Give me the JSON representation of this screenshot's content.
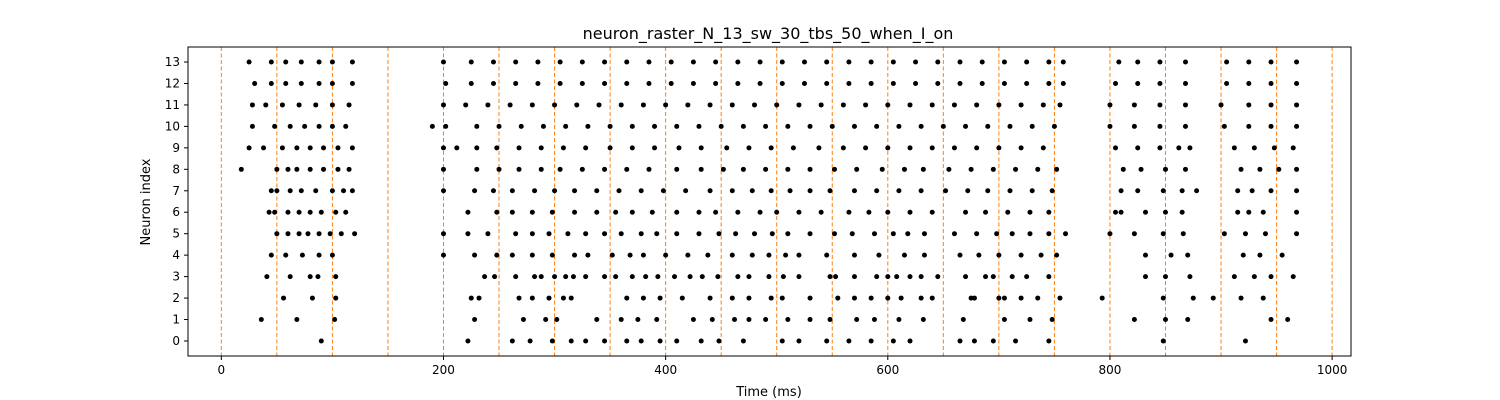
{
  "chart_data": {
    "type": "scatter",
    "title": "neuron_raster_N_13_sw_30_tbs_50_when_I_on",
    "xlabel": "Time (ms)",
    "ylabel": "Neuron index",
    "xlim": [
      -30,
      1017
    ],
    "ylim": [
      -0.7,
      13.7
    ],
    "x_ticks": [
      0,
      200,
      400,
      600,
      800,
      1000
    ],
    "y_ticks": [
      0,
      1,
      2,
      3,
      4,
      5,
      6,
      7,
      8,
      9,
      10,
      11,
      12,
      13
    ],
    "grid": false,
    "marker_color": "#000000",
    "vline_color": "#ff7f0e",
    "vlines_x": [
      0,
      50,
      100,
      150,
      200,
      250,
      300,
      350,
      400,
      450,
      500,
      550,
      600,
      650,
      700,
      750,
      800,
      850,
      900,
      950,
      1000
    ],
    "spikes": [
      {
        "neuron": 0,
        "times": [
          90,
          222,
          262,
          278,
          298,
          315,
          328,
          345,
          365,
          378,
          395,
          410,
          432,
          448,
          470,
          505,
          520,
          545,
          565,
          585,
          605,
          620,
          665,
          678,
          695,
          715,
          745,
          848,
          922
        ]
      },
      {
        "neuron": 1,
        "times": [
          36,
          68,
          102,
          228,
          272,
          292,
          302,
          338,
          360,
          375,
          392,
          425,
          442,
          462,
          475,
          490,
          510,
          530,
          548,
          572,
          588,
          610,
          632,
          668,
          705,
          728,
          748,
          822,
          850,
          870,
          945,
          960
        ]
      },
      {
        "neuron": 2,
        "times": [
          56,
          82,
          103,
          225,
          232,
          268,
          280,
          295,
          308,
          315,
          365,
          380,
          395,
          415,
          440,
          460,
          475,
          495,
          505,
          530,
          555,
          570,
          585,
          600,
          612,
          630,
          640,
          675,
          678,
          700,
          705,
          720,
          735,
          755,
          793,
          848,
          875,
          893,
          918,
          938
        ]
      },
      {
        "neuron": 3,
        "times": [
          41,
          62,
          80,
          87,
          103,
          237,
          246,
          265,
          282,
          288,
          300,
          310,
          317,
          328,
          345,
          355,
          370,
          382,
          393,
          408,
          422,
          433,
          447,
          465,
          475,
          493,
          506,
          520,
          548,
          553,
          570,
          590,
          600,
          608,
          620,
          630,
          645,
          670,
          688,
          695,
          712,
          725,
          745,
          832,
          850,
          872,
          912,
          930,
          945,
          965
        ]
      },
      {
        "neuron": 4,
        "times": [
          45,
          58,
          73,
          88,
          100,
          200,
          228,
          248,
          262,
          280,
          298,
          318,
          330,
          352,
          368,
          380,
          400,
          420,
          438,
          460,
          478,
          493,
          508,
          520,
          545,
          570,
          592,
          615,
          633,
          665,
          682,
          700,
          720,
          738,
          752,
          832,
          855,
          870,
          920,
          935,
          955
        ]
      },
      {
        "neuron": 5,
        "times": [
          50,
          60,
          70,
          78,
          88,
          98,
          108,
          120,
          200,
          222,
          240,
          265,
          280,
          295,
          312,
          328,
          345,
          360,
          378,
          392,
          410,
          430,
          448,
          463,
          480,
          496,
          510,
          530,
          552,
          568,
          588,
          605,
          618,
          633,
          660,
          680,
          698,
          712,
          728,
          745,
          760,
          800,
          822,
          848,
          866,
          903,
          922,
          940,
          968
        ]
      },
      {
        "neuron": 6,
        "times": [
          43,
          48,
          60,
          70,
          80,
          90,
          103,
          112,
          222,
          248,
          262,
          280,
          298,
          318,
          338,
          355,
          370,
          388,
          410,
          430,
          445,
          465,
          485,
          500,
          520,
          540,
          565,
          583,
          600,
          620,
          640,
          670,
          688,
          708,
          728,
          745,
          805,
          810,
          832,
          850,
          865,
          915,
          925,
          938,
          968
        ]
      },
      {
        "neuron": 7,
        "times": [
          45,
          50,
          62,
          72,
          85,
          100,
          110,
          118,
          200,
          228,
          245,
          262,
          282,
          300,
          318,
          338,
          358,
          378,
          398,
          418,
          440,
          460,
          478,
          495,
          512,
          530,
          548,
          570,
          590,
          610,
          630,
          652,
          672,
          690,
          710,
          730,
          748,
          810,
          825,
          848,
          865,
          878,
          915,
          928,
          945,
          968
        ]
      },
      {
        "neuron": 8,
        "times": [
          18,
          50,
          60,
          68,
          80,
          92,
          105,
          115,
          200,
          230,
          250,
          268,
          288,
          305,
          325,
          345,
          365,
          385,
          410,
          432,
          452,
          470,
          490,
          510,
          530,
          552,
          572,
          595,
          615,
          632,
          655,
          675,
          695,
          715,
          735,
          752,
          812,
          828,
          850,
          868,
          918,
          935,
          952,
          968
        ]
      },
      {
        "neuron": 9,
        "times": [
          25,
          38,
          55,
          68,
          80,
          92,
          105,
          118,
          200,
          212,
          230,
          248,
          268,
          288,
          308,
          328,
          350,
          370,
          390,
          412,
          432,
          455,
          475,
          495,
          515,
          538,
          560,
          580,
          600,
          620,
          640,
          660,
          680,
          700,
          720,
          740,
          805,
          825,
          845,
          862,
          872,
          912,
          930,
          948,
          965
        ]
      },
      {
        "neuron": 10,
        "times": [
          28,
          48,
          62,
          75,
          88,
          100,
          112,
          190,
          202,
          230,
          250,
          270,
          290,
          310,
          330,
          350,
          370,
          390,
          410,
          430,
          450,
          470,
          490,
          510,
          530,
          550,
          570,
          590,
          610,
          630,
          650,
          670,
          690,
          710,
          730,
          750,
          800,
          822,
          845,
          868,
          903,
          925,
          945,
          968
        ]
      },
      {
        "neuron": 11,
        "times": [
          28,
          40,
          55,
          70,
          85,
          100,
          115,
          200,
          220,
          240,
          260,
          280,
          300,
          320,
          340,
          360,
          380,
          400,
          420,
          440,
          460,
          480,
          500,
          520,
          540,
          560,
          580,
          600,
          620,
          640,
          660,
          680,
          700,
          720,
          740,
          755,
          800,
          822,
          845,
          868,
          900,
          925,
          945,
          968
        ]
      },
      {
        "neuron": 12,
        "times": [
          30,
          45,
          58,
          72,
          88,
          100,
          118,
          202,
          225,
          245,
          265,
          285,
          305,
          325,
          345,
          365,
          385,
          405,
          425,
          445,
          465,
          485,
          505,
          525,
          545,
          565,
          585,
          605,
          625,
          645,
          665,
          685,
          705,
          725,
          745,
          758,
          805,
          825,
          845,
          868,
          905,
          925,
          945,
          968
        ]
      },
      {
        "neuron": 13,
        "times": [
          25,
          45,
          58,
          72,
          88,
          100,
          118,
          200,
          225,
          245,
          265,
          285,
          305,
          325,
          345,
          365,
          385,
          405,
          425,
          445,
          465,
          485,
          505,
          525,
          545,
          565,
          585,
          605,
          625,
          645,
          665,
          685,
          705,
          725,
          745,
          758,
          808,
          825,
          845,
          868,
          905,
          925,
          945,
          968
        ]
      }
    ]
  }
}
